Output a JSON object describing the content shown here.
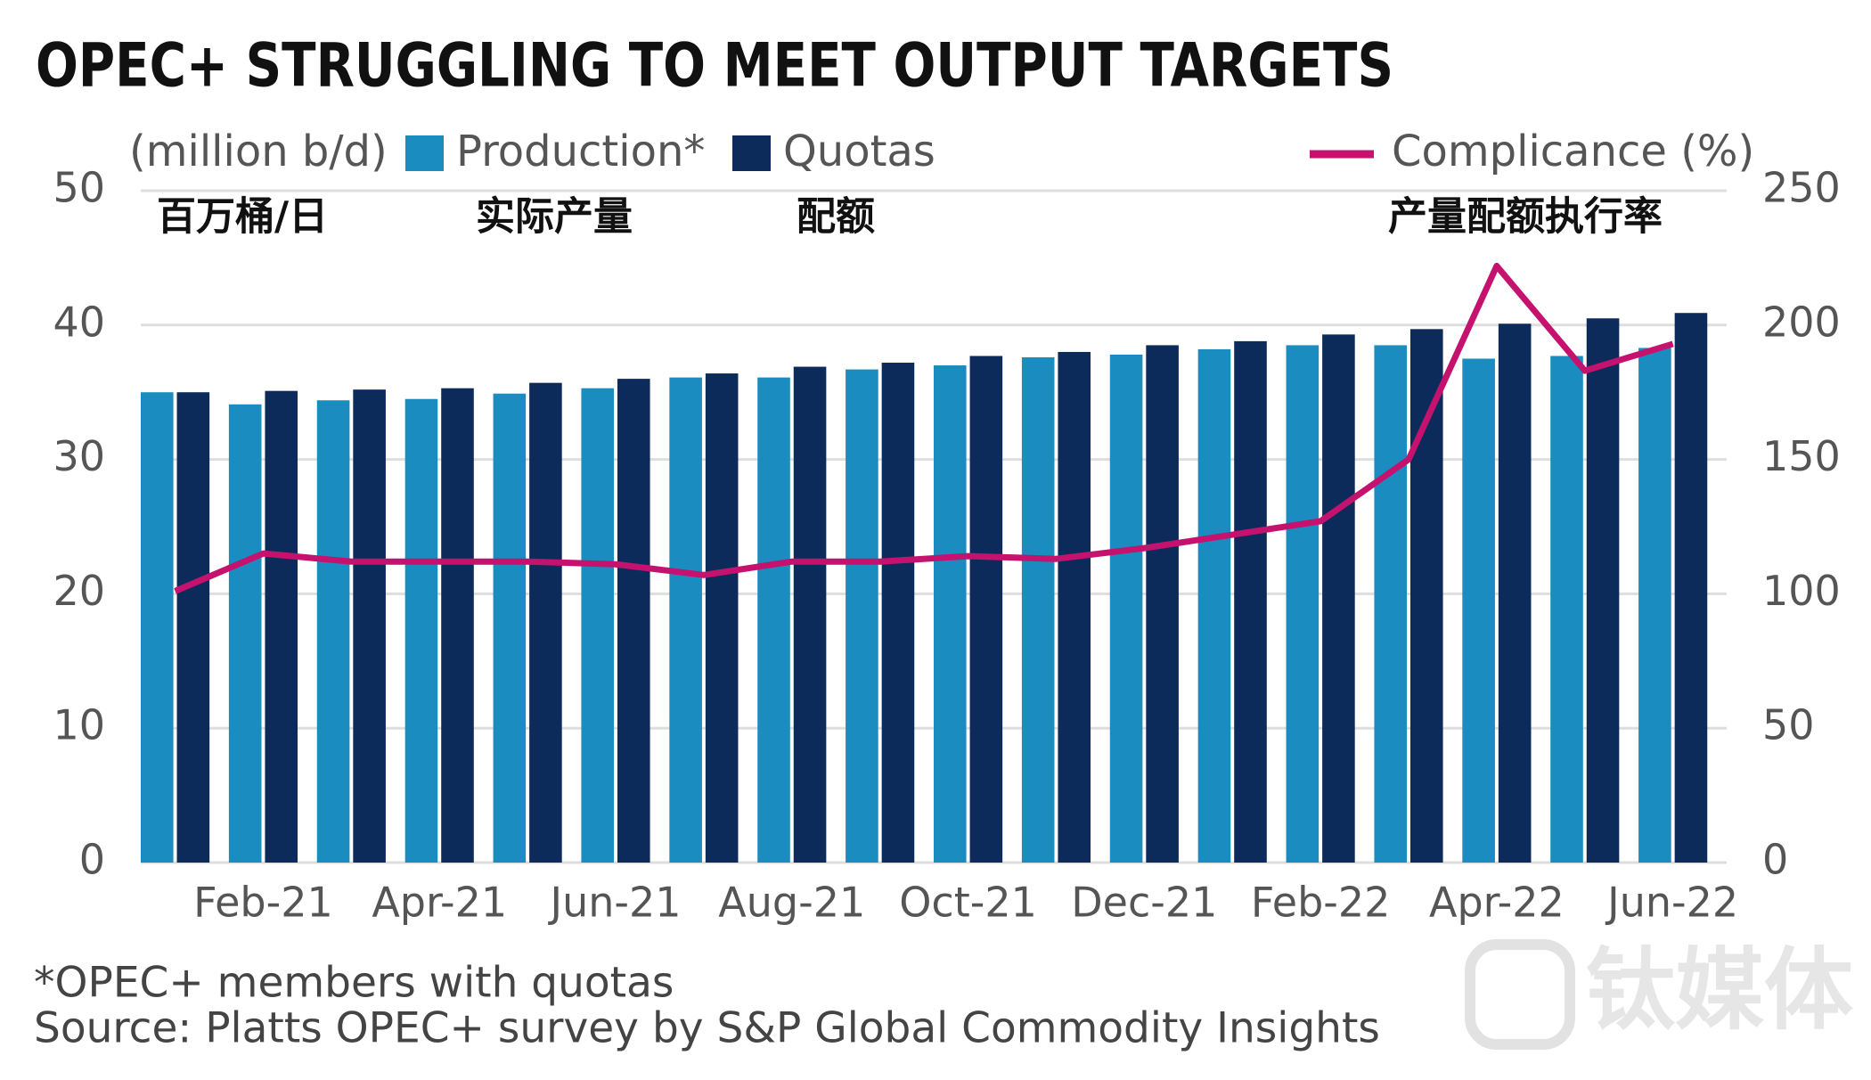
{
  "chart_data": {
    "type": "bar-line",
    "title": "OPEC+ STRUGGLING TO MEET OUTPUT TARGETS",
    "y_label": "(million b/d)",
    "annotations": [
      "百万桶/日",
      "实际产量",
      "配额",
      "产量配额执行率"
    ],
    "categories": [
      null,
      "Feb-21",
      null,
      "Apr-21",
      null,
      "Jun-21",
      null,
      "Aug-21",
      null,
      "Oct-21",
      null,
      "Dec-21",
      null,
      "Feb-22",
      null,
      "Apr-22",
      null,
      "Jun-22"
    ],
    "series": [
      {
        "name": "Production*",
        "color": "#1a8cbf",
        "values": [
          35.0,
          34.1,
          34.4,
          34.5,
          34.9,
          35.3,
          36.1,
          36.1,
          36.7,
          37.0,
          37.6,
          37.8,
          38.2,
          38.5,
          38.5,
          37.5,
          37.7,
          38.3
        ]
      },
      {
        "name": "Quotas",
        "color": "#0c2b5b",
        "values": [
          35.0,
          35.1,
          35.2,
          35.3,
          35.7,
          36.0,
          36.4,
          36.9,
          37.2,
          37.7,
          38.0,
          38.5,
          38.8,
          39.3,
          39.7,
          40.1,
          40.5,
          40.9
        ]
      },
      {
        "name": "Complicance (%)",
        "color": "#c4126e",
        "axis": "y2",
        "type": "line",
        "values": [
          101,
          115,
          112,
          112,
          112,
          111,
          107,
          112,
          112,
          114,
          113,
          117,
          122,
          127,
          150,
          222,
          183,
          193
        ]
      }
    ],
    "ylim": [
      0,
      50
    ],
    "yticks": [
      0,
      10,
      20,
      30,
      40,
      50
    ],
    "y2lim": [
      0,
      250
    ],
    "y2ticks": [
      0,
      50,
      100,
      150,
      200,
      250
    ],
    "grid": true,
    "footnotes": [
      "*OPEC+ members with quotas",
      "Source: Platts OPEC+ survey by S&P Global Commodity Insights"
    ],
    "watermark": "钛媒体"
  }
}
